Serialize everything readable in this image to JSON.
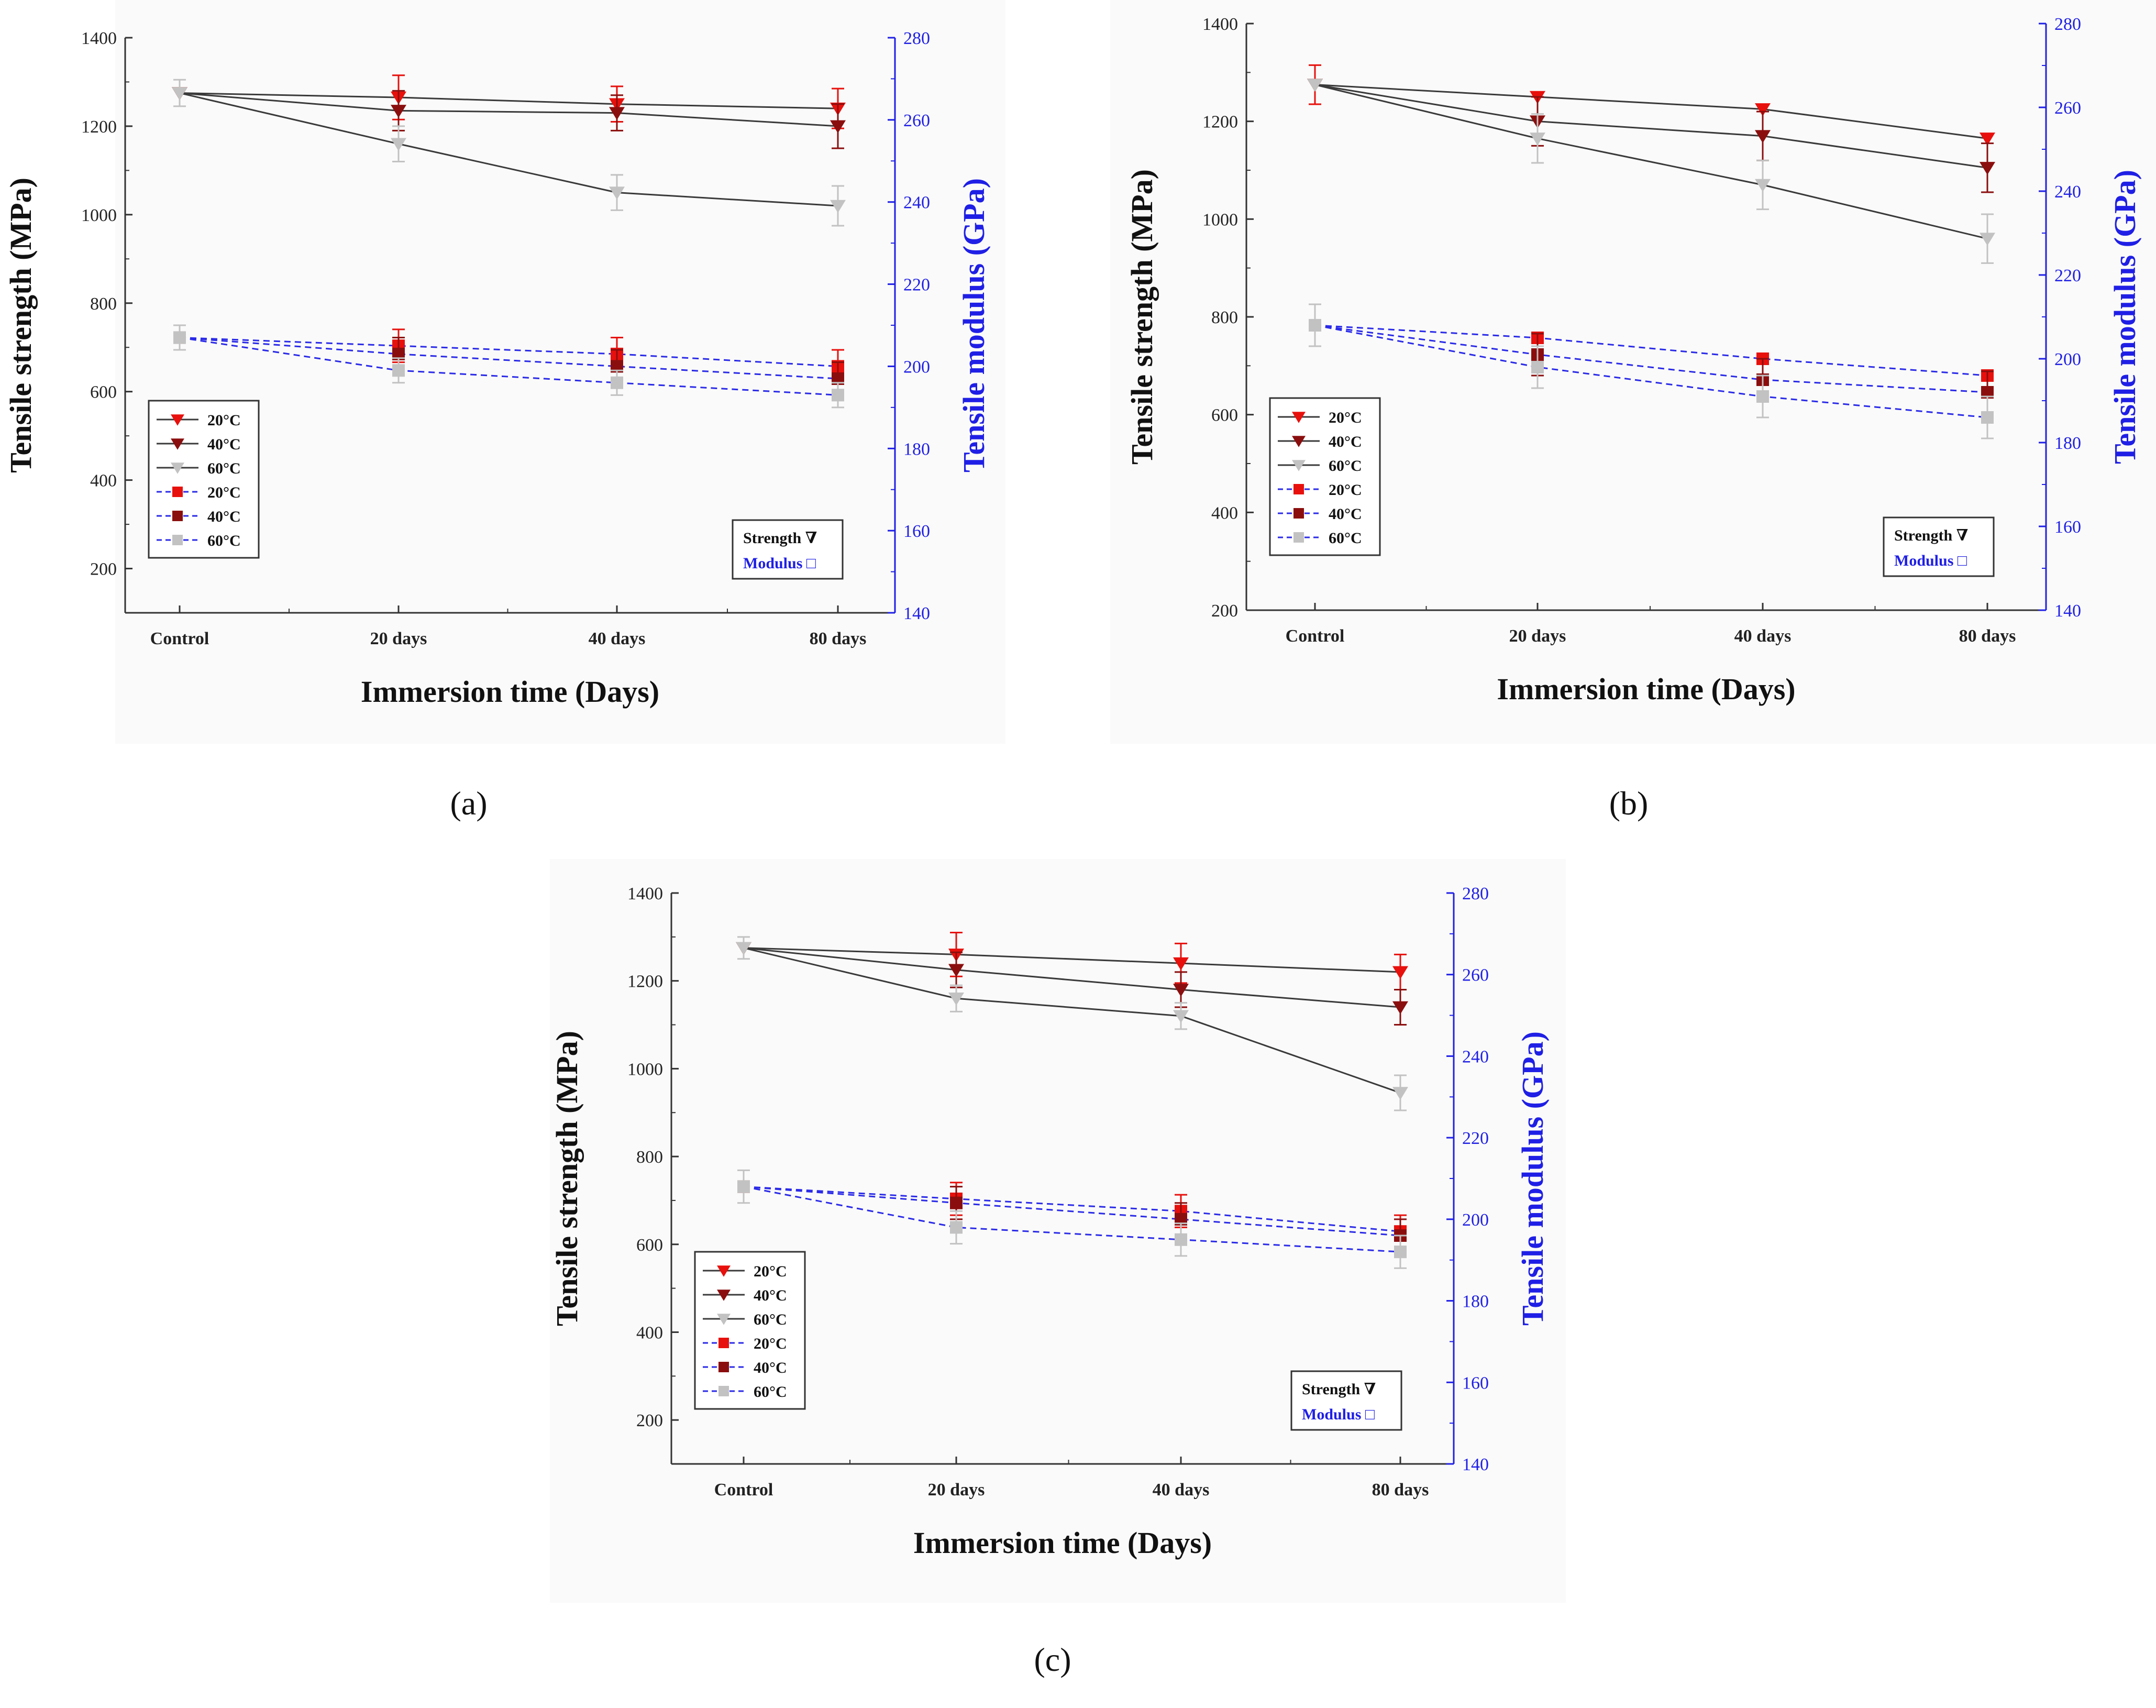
{
  "colors": {
    "axis_left": "#333333",
    "axis_right": "#1f1fe6",
    "strength_line": "#3a3a3a",
    "modulus_line": "#2a2ae8",
    "c20": "#e8100c",
    "c40": "#8b0e0e",
    "c60": "#c2c2c2",
    "panel_bg": "#fafafa"
  },
  "chart_data": [
    {
      "type": "line",
      "panel": "(a)",
      "categories": [
        "Control",
        "20 days",
        "40 days",
        "80 days"
      ],
      "xlabel": "Immersion time (Days)",
      "ylabel": "Tensile strength (MPa)",
      "y2label": "Tensile modulus (GPa)",
      "ylim": [
        100,
        1400
      ],
      "y2lim": [
        140,
        280
      ],
      "yticks": [
        200,
        400,
        600,
        800,
        1000,
        1200,
        1400
      ],
      "y2ticks": [
        140,
        160,
        180,
        200,
        220,
        240,
        260,
        280
      ],
      "legend": {
        "labels": [
          "20°C",
          "40°C",
          "60°C",
          "20°C",
          "40°C",
          "60°C"
        ],
        "placement": "bottom-left"
      },
      "box": {
        "strength": "Strength ∇",
        "modulus": "Modulus □",
        "placement": "bottom-right"
      },
      "strength_series": [
        {
          "name": "20°C",
          "values": [
            1275,
            1265,
            1250,
            1240
          ],
          "err": [
            0,
            50,
            40,
            45
          ]
        },
        {
          "name": "40°C",
          "values": [
            1275,
            1235,
            1230,
            1200
          ],
          "err": [
            0,
            45,
            40,
            50
          ]
        },
        {
          "name": "60°C",
          "values": [
            1275,
            1160,
            1050,
            1020
          ],
          "err": [
            30,
            40,
            40,
            45
          ]
        }
      ],
      "modulus_series": [
        {
          "name": "20°C",
          "values": [
            207,
            205,
            203,
            200
          ],
          "err": [
            0,
            4,
            4,
            4
          ]
        },
        {
          "name": "40°C",
          "values": [
            207,
            203,
            200,
            197
          ],
          "err": [
            0,
            4,
            4,
            4
          ]
        },
        {
          "name": "60°C",
          "values": [
            207,
            199,
            196,
            193
          ],
          "err": [
            3,
            3,
            3,
            3
          ]
        }
      ]
    },
    {
      "type": "line",
      "panel": "(b)",
      "categories": [
        "Control",
        "20 days",
        "40 days",
        "80 days"
      ],
      "xlabel": "Immersion time (Days)",
      "ylabel": "Tensile strength (MPa)",
      "y2label": "Tensile modulus (GPa)",
      "ylim": [
        200,
        1400
      ],
      "y2lim": [
        140,
        280
      ],
      "yticks": [
        200,
        400,
        600,
        800,
        1000,
        1200,
        1400
      ],
      "y2ticks": [
        140,
        160,
        180,
        200,
        220,
        240,
        260,
        280
      ],
      "legend": {
        "labels": [
          "20°C",
          "40°C",
          "60°C",
          "20°C",
          "40°C",
          "60°C"
        ],
        "placement": "bottom-left"
      },
      "box": {
        "strength": "Strength ∇",
        "modulus": "Modulus □",
        "placement": "bottom-right"
      },
      "strength_series": [
        {
          "name": "20°C",
          "values": [
            1275,
            1250,
            1225,
            1165
          ],
          "err": [
            40,
            0,
            0,
            0
          ]
        },
        {
          "name": "40°C",
          "values": [
            1275,
            1200,
            1170,
            1105
          ],
          "err": [
            0,
            50,
            50,
            50
          ]
        },
        {
          "name": "60°C",
          "values": [
            1275,
            1165,
            1070,
            960
          ],
          "err": [
            0,
            50,
            50,
            50
          ]
        }
      ],
      "modulus_series": [
        {
          "name": "20°C",
          "values": [
            208,
            205,
            200,
            196
          ],
          "err": [
            0,
            0,
            0,
            0
          ]
        },
        {
          "name": "40°C",
          "values": [
            208,
            201,
            195,
            192
          ],
          "err": [
            0,
            5,
            5,
            5
          ]
        },
        {
          "name": "60°C",
          "values": [
            208,
            198,
            191,
            186
          ],
          "err": [
            5,
            5,
            5,
            5
          ]
        }
      ]
    },
    {
      "type": "line",
      "panel": "(c)",
      "categories": [
        "Control",
        "20 days",
        "40 days",
        "80 days"
      ],
      "xlabel": "Immersion time (Days)",
      "ylabel": "Tensile strength (MPa)",
      "y2label": "Tensile modulus (GPa)",
      "ylim": [
        100,
        1400
      ],
      "y2lim": [
        140,
        280
      ],
      "yticks": [
        200,
        400,
        600,
        800,
        1000,
        1200,
        1400
      ],
      "y2ticks": [
        140,
        160,
        180,
        200,
        220,
        240,
        260,
        280
      ],
      "legend": {
        "labels": [
          "20°C",
          "40°C",
          "60°C",
          "20°C",
          "40°C",
          "60°C"
        ],
        "placement": "bottom-left"
      },
      "box": {
        "strength": "Strength ∇",
        "modulus": "Modulus □",
        "placement": "bottom-right"
      },
      "strength_series": [
        {
          "name": "20°C",
          "values": [
            1275,
            1260,
            1240,
            1220
          ],
          "err": [
            0,
            50,
            45,
            40
          ]
        },
        {
          "name": "40°C",
          "values": [
            1275,
            1225,
            1180,
            1140
          ],
          "err": [
            0,
            40,
            40,
            40
          ]
        },
        {
          "name": "60°C",
          "values": [
            1275,
            1160,
            1120,
            945
          ],
          "err": [
            25,
            30,
            30,
            40
          ]
        }
      ],
      "modulus_series": [
        {
          "name": "20°C",
          "values": [
            208,
            205,
            202,
            197
          ],
          "err": [
            0,
            4,
            4,
            4
          ]
        },
        {
          "name": "40°C",
          "values": [
            208,
            204,
            200,
            196
          ],
          "err": [
            0,
            4,
            4,
            4
          ]
        },
        {
          "name": "60°C",
          "values": [
            208,
            198,
            195,
            192
          ],
          "err": [
            4,
            4,
            4,
            4
          ]
        }
      ]
    }
  ]
}
